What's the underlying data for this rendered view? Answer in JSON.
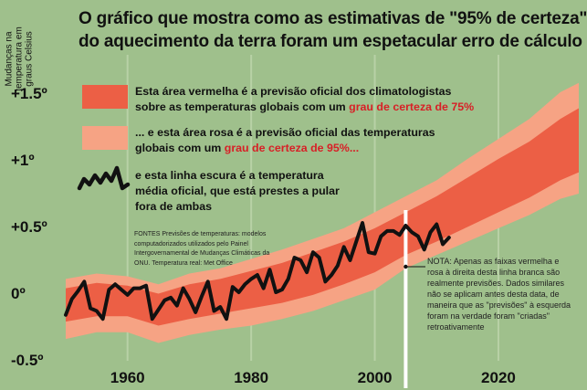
{
  "header": {
    "title_line1": "O gráfico que mostra como as estimativas de \"95% de certeza\"",
    "title_line2": "do aquecimento da terra foram um espetacular erro de cálculo",
    "y_axis_title_1": "Mudanças na",
    "y_axis_title_2": "temperatura em",
    "y_axis_title_3": "graus Celsius"
  },
  "legend": {
    "red": {
      "line1": "Esta área vermelha é a previsão oficial dos climatologistas",
      "line2_pre": "sobre as temperaturas globais com um ",
      "line2_em": "grau de certeza de 75%"
    },
    "pink": {
      "line1": "... e esta área rosa é a previsão oficial das temperaturas",
      "line2_pre": "globais com um ",
      "line2_em": "grau de certeza de 95%..."
    },
    "line": {
      "line1": "e esta linha escura é a temperatura",
      "line2": "média oficial, que está prestes a pular",
      "line3": "fora de ambas"
    }
  },
  "sources": "FONTES Previsões de temperaturas: modelos computadorizados utilizados pelo Painel Intergovernamental de Mudanças Climáticas da ONU. Temperatura real: Met Office",
  "note": "NOTA: Apenas as faixas vermelha e rosa à direita desta linha branca são realmente previsões. Dados similares não se aplicam antes desta data, de maneira que as \"previsões\" à esquerda foram na verdade foram \"criadas\" retroativamente",
  "colors": {
    "background": "#9fc08c",
    "band_95": "#f6a384",
    "band_75": "#ec5f45",
    "line": "#111111",
    "title": "#111111",
    "emphasis": "#d81f26"
  },
  "chart_data": {
    "type": "area",
    "title": "O gráfico que mostra como as estimativas de \"95% de certeza\" do aquecimento da terra foram um espetacular erro de cálculo",
    "ylabel": "Mudanças na temperatura em graus Celsius",
    "xlabel": "",
    "xlim": [
      1950,
      2033
    ],
    "ylim": [
      -0.5,
      1.6
    ],
    "x_ticks": [
      1960,
      1980,
      2000,
      2020
    ],
    "y_ticks": [
      -0.5,
      0,
      0.5,
      1,
      1.5
    ],
    "y_tick_labels": [
      "-0.5º",
      "0º",
      "+0.5º",
      "+1º",
      "+1.5º"
    ],
    "forecast_start_year": 2005,
    "series": [
      {
        "name": "Previsão 95%",
        "x": [
          1950,
          1955,
          1960,
          1965,
          1970,
          1975,
          1980,
          1985,
          1990,
          1995,
          2000,
          2005,
          2010,
          2015,
          2020,
          2025,
          2030,
          2033
        ],
        "upper": [
          0.1,
          0.14,
          0.12,
          0.06,
          0.14,
          0.18,
          0.25,
          0.32,
          0.4,
          0.48,
          0.6,
          0.72,
          0.84,
          1.0,
          1.15,
          1.3,
          1.5,
          1.57
        ],
        "lower": [
          -0.35,
          -0.3,
          -0.3,
          -0.38,
          -0.32,
          -0.28,
          -0.25,
          -0.2,
          -0.14,
          -0.06,
          0.02,
          0.18,
          0.28,
          0.38,
          0.48,
          0.58,
          0.7,
          0.74
        ]
      },
      {
        "name": "Previsão 75%",
        "x": [
          1950,
          1955,
          1960,
          1965,
          1970,
          1975,
          1980,
          1985,
          1990,
          1995,
          2000,
          2005,
          2010,
          2015,
          2020,
          2025,
          2030,
          2033
        ],
        "upper": [
          0.03,
          0.07,
          0.05,
          -0.01,
          0.06,
          0.1,
          0.16,
          0.22,
          0.3,
          0.38,
          0.48,
          0.6,
          0.72,
          0.86,
          1.0,
          1.13,
          1.3,
          1.38
        ],
        "lower": [
          -0.22,
          -0.18,
          -0.18,
          -0.25,
          -0.2,
          -0.16,
          -0.12,
          -0.08,
          -0.02,
          0.06,
          0.15,
          0.28,
          0.38,
          0.49,
          0.6,
          0.71,
          0.84,
          0.9
        ]
      },
      {
        "name": "Temperatura média oficial",
        "x": [
          1950,
          1951,
          1952,
          1953,
          1954,
          1955,
          1956,
          1957,
          1958,
          1959,
          1960,
          1961,
          1962,
          1963,
          1964,
          1965,
          1966,
          1967,
          1968,
          1969,
          1970,
          1971,
          1972,
          1973,
          1974,
          1975,
          1976,
          1977,
          1978,
          1979,
          1980,
          1981,
          1982,
          1983,
          1984,
          1985,
          1986,
          1987,
          1988,
          1989,
          1990,
          1991,
          1992,
          1993,
          1994,
          1995,
          1996,
          1997,
          1998,
          1999,
          2000,
          2001,
          2002,
          2003,
          2004,
          2005,
          2006,
          2007,
          2008,
          2009,
          2010,
          2011,
          2012
        ],
        "values": [
          -0.17,
          -0.05,
          0.01,
          0.08,
          -0.12,
          -0.14,
          -0.2,
          0.02,
          0.06,
          0.02,
          -0.02,
          0.03,
          0.03,
          0.05,
          -0.2,
          -0.13,
          -0.06,
          -0.04,
          -0.1,
          0.03,
          -0.05,
          -0.15,
          -0.03,
          0.08,
          -0.14,
          -0.11,
          -0.2,
          0.04,
          0.0,
          0.06,
          0.1,
          0.13,
          0.03,
          0.17,
          0.0,
          0.02,
          0.1,
          0.26,
          0.24,
          0.15,
          0.3,
          0.26,
          0.08,
          0.13,
          0.2,
          0.34,
          0.24,
          0.38,
          0.52,
          0.3,
          0.29,
          0.42,
          0.46,
          0.46,
          0.43,
          0.5,
          0.45,
          0.42,
          0.32,
          0.45,
          0.51,
          0.36,
          0.41
        ]
      }
    ]
  }
}
